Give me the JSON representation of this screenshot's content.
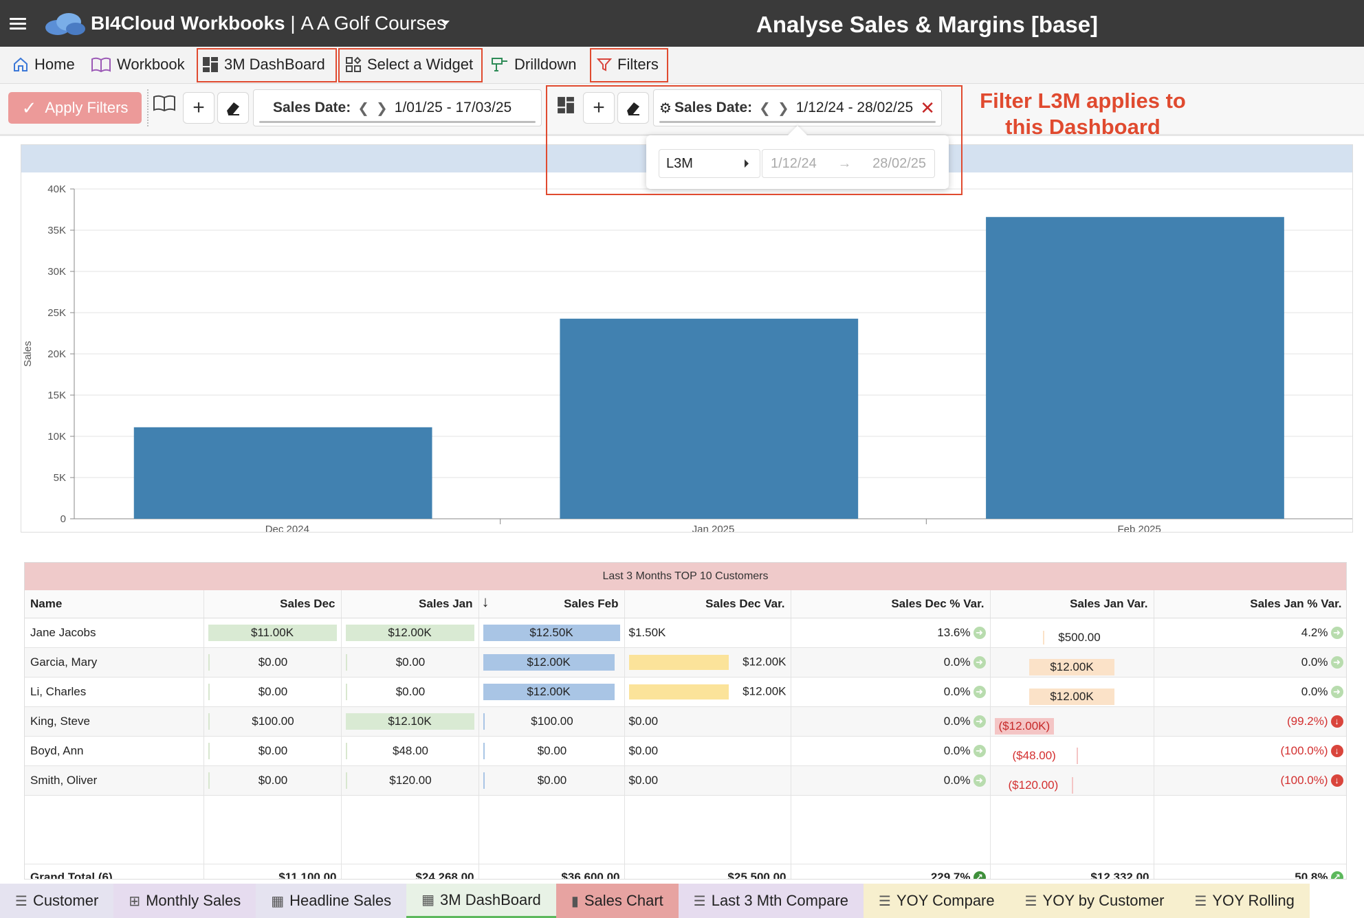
{
  "app": {
    "brand": "BI4Cloud Workbooks",
    "separator": "|",
    "company": "A A Golf Courses",
    "page_title": "Analyse Sales & Margins [base]"
  },
  "menu": {
    "home": "Home",
    "workbook": "Workbook",
    "dashboard": "3M DashBoard",
    "select_widget": "Select a Widget",
    "drilldown": "Drilldown",
    "filters": "Filters"
  },
  "filterbar": {
    "apply_filters": "Apply Filters",
    "workbook_filter": {
      "label": "Sales Date:",
      "range": "1/01/25 - 17/03/25"
    },
    "dashboard_filter": {
      "label": "Sales Date:",
      "range": "1/12/24 - 28/02/25"
    },
    "popover": {
      "preset": "L3M",
      "from": "1/12/24",
      "to": "28/02/25"
    }
  },
  "annotation": {
    "line1": "Filter  L3M applies to",
    "line2": "this Dashboard"
  },
  "colors": {
    "accent_red": "#e04a2f",
    "bar_blue": "#4181b0",
    "topbar": "#3a3a3a"
  },
  "chart_data": {
    "type": "bar",
    "title": "",
    "categories": [
      "Dec 2024",
      "Jan 2025",
      "Feb 2025"
    ],
    "values": [
      11100,
      24268,
      36600
    ],
    "xlabel": "",
    "ylabel": "Sales",
    "ylim": [
      0,
      40000
    ],
    "yticks": [
      0,
      5000,
      10000,
      15000,
      20000,
      25000,
      30000,
      35000,
      40000
    ],
    "ytick_labels": [
      "0",
      "5K",
      "10K",
      "15K",
      "20K",
      "25K",
      "30K",
      "35K",
      "40K"
    ],
    "grid": true
  },
  "table": {
    "title": "Last 3 Months TOP 10 Customers",
    "sort_indicator": "↓",
    "headers": [
      "Name",
      "Sales Dec",
      "Sales Jan",
      "Sales Feb",
      "Sales Dec Var.",
      "Sales Dec % Var.",
      "Sales Jan Var.",
      "Sales Jan % Var."
    ],
    "rows": [
      [
        "Jane Jacobs",
        "$11.00K",
        "$12.00K",
        "$12.50K",
        "$1.50K",
        "13.6%",
        "$500.00",
        "4.2%"
      ],
      [
        "Garcia, Mary",
        "$0.00",
        "$0.00",
        "$12.00K",
        "$12.00K",
        "0.0%",
        "$12.00K",
        "0.0%"
      ],
      [
        "Li, Charles",
        "$0.00",
        "$0.00",
        "$12.00K",
        "$12.00K",
        "0.0%",
        "$12.00K",
        "0.0%"
      ],
      [
        "King, Steve",
        "$100.00",
        "$12.10K",
        "$100.00",
        "$0.00",
        "0.0%",
        "($12.00K)",
        "(99.2%)"
      ],
      [
        "Boyd, Ann",
        "$0.00",
        "$48.00",
        "$0.00",
        "$0.00",
        "0.0%",
        "($48.00)",
        "(100.0%)"
      ],
      [
        "Smith, Oliver",
        "$0.00",
        "$120.00",
        "$0.00",
        "$0.00",
        "0.0%",
        "($120.00)",
        "(100.0%)"
      ]
    ],
    "total": [
      "Grand Total (6)",
      "$11,100.00",
      "$24,268.00",
      "$36,600.00",
      "$25,500.00",
      "229.7%",
      "$12,332.00",
      "50.8%"
    ]
  },
  "tabs": [
    {
      "label": "Customer",
      "icon": "list-icon",
      "glyph": "☰",
      "bg": "#e5e3f0"
    },
    {
      "label": "Monthly Sales",
      "icon": "pivot-icon",
      "glyph": "⊞",
      "bg": "#e6dcef"
    },
    {
      "label": "Headline Sales",
      "icon": "dashboard-icon",
      "glyph": "▦",
      "bg": "#e5e3f0"
    },
    {
      "label": "3M DashBoard",
      "icon": "dashboard-icon",
      "glyph": "▦",
      "bg": "#e8f2e6"
    },
    {
      "label": "Sales Chart",
      "icon": "bar-chart-icon",
      "glyph": "▮",
      "bg": "#e7a3a1"
    },
    {
      "label": "Last 3 Mth Compare",
      "icon": "list-icon",
      "glyph": "☰",
      "bg": "#e6dcef"
    },
    {
      "label": "YOY Compare",
      "icon": "list-icon",
      "glyph": "☰",
      "bg": "#f7efce"
    },
    {
      "label": "YOY by Customer",
      "icon": "list-icon",
      "glyph": "☰",
      "bg": "#f7efce"
    },
    {
      "label": "YOY Rolling",
      "icon": "list-icon",
      "glyph": "☰",
      "bg": "#f7efce"
    }
  ]
}
